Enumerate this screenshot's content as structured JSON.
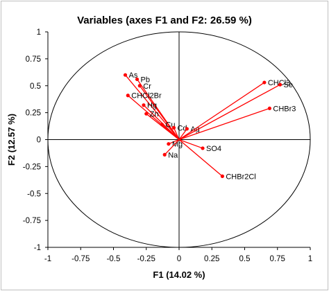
{
  "chart_data": {
    "type": "scatter",
    "subtype": "correlation-circle",
    "title": "Variables (axes F1 and F2: 26.59 %)",
    "xlabel": "F1 (14.02 %)",
    "ylabel": "F2 (12.57 %)",
    "xlim": [
      -1,
      1
    ],
    "ylim": [
      -1,
      1
    ],
    "x_ticks": [
      "-1",
      "-0.75",
      "-0.5",
      "-0.25",
      "0",
      "0.25",
      "0.5",
      "0.75",
      "1"
    ],
    "y_ticks": [
      "1",
      "0.75",
      "0.5",
      "0.25",
      "0",
      "-0.25",
      "-0.5",
      "-0.75",
      "-1"
    ],
    "grid": false,
    "legend": "none",
    "unit_circle": true,
    "vector_color": "#ff0000",
    "circle_color": "#000000",
    "variables": [
      {
        "label": "As",
        "x": -0.41,
        "y": 0.6
      },
      {
        "label": "Pb",
        "x": -0.32,
        "y": 0.56
      },
      {
        "label": "Cr",
        "x": -0.3,
        "y": 0.5
      },
      {
        "label": "CHCl2Br",
        "x": -0.39,
        "y": 0.41
      },
      {
        "label": "Hg",
        "x": -0.27,
        "y": 0.32
      },
      {
        "label": "Zn",
        "x": -0.25,
        "y": 0.24
      },
      {
        "label": "Cu",
        "x": -0.13,
        "y": 0.14
      },
      {
        "label": "Cd",
        "x": -0.04,
        "y": 0.11
      },
      {
        "label": "Ag",
        "x": 0.06,
        "y": 0.1
      },
      {
        "label": "CHCl3",
        "x": 0.65,
        "y": 0.53
      },
      {
        "label": "Se",
        "x": 0.77,
        "y": 0.51
      },
      {
        "label": "CHBr3",
        "x": 0.69,
        "y": 0.29
      },
      {
        "label": "Mg",
        "x": -0.08,
        "y": -0.04
      },
      {
        "label": "SO4",
        "x": 0.18,
        "y": -0.08
      },
      {
        "label": "Na",
        "x": -0.11,
        "y": -0.14
      },
      {
        "label": "CHBr2Cl",
        "x": 0.33,
        "y": -0.34
      }
    ]
  }
}
